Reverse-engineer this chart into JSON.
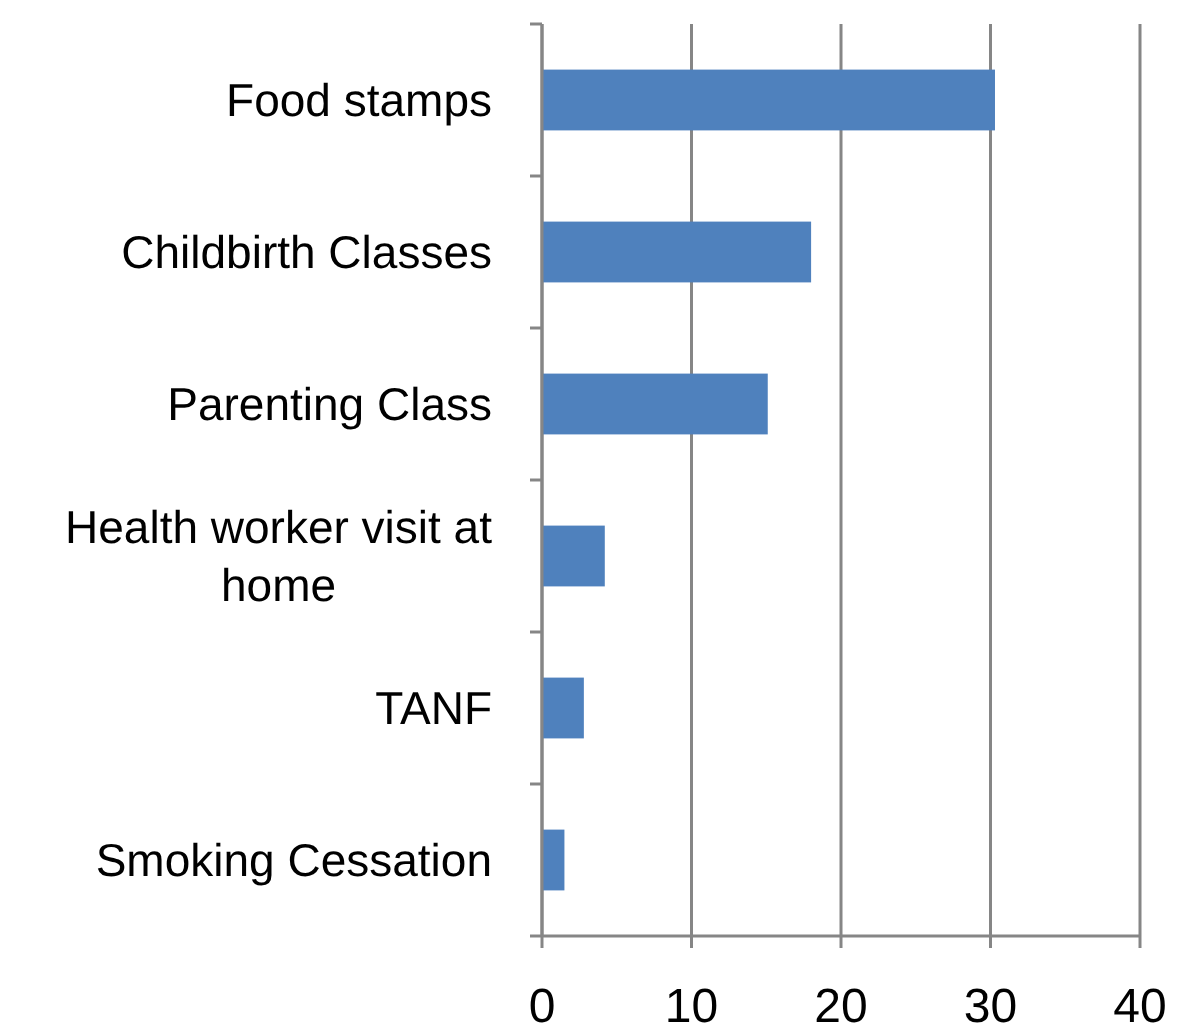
{
  "chart_data": {
    "type": "bar",
    "orientation": "horizontal",
    "categories": [
      "Food stamps",
      "Childbirth Classes",
      "Parenting Class",
      "Health worker visit at home",
      "TANF",
      "Smoking Cessation"
    ],
    "values": [
      30.3,
      18,
      15.1,
      4.2,
      2.8,
      1.5
    ],
    "color": "#4f81bd",
    "xlim": [
      0,
      40
    ],
    "xticks": [
      0,
      10,
      20,
      30,
      40
    ],
    "grid": "x"
  }
}
